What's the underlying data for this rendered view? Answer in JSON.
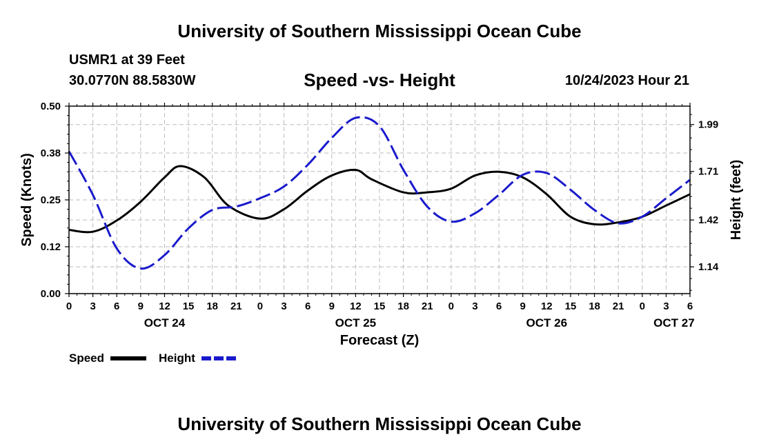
{
  "page": {
    "title": "University of Southern Mississippi Ocean Cube",
    "footer_title": "University of Southern Mississippi Ocean Cube",
    "station": "USMR1 at 39 Feet",
    "coordinates": "30.0770N  88.5830W",
    "subtitle": "Speed -vs- Height",
    "timestamp": "10/24/2023 Hour 21"
  },
  "chart_data": {
    "type": "line",
    "title": "Speed -vs- Height",
    "xlabel": "Forecast (Z)",
    "ylabel": "Speed (Knots)",
    "y2label": "Height (feet)",
    "x_unit": "hours since 10/24 00Z",
    "xlim": [
      0,
      78
    ],
    "ylim": [
      0.0,
      0.5
    ],
    "y2lim": [
      0.98,
      2.1
    ],
    "x_ticks": [
      0,
      3,
      6,
      9,
      12,
      15,
      18,
      21,
      24,
      27,
      30,
      33,
      36,
      39,
      42,
      45,
      48,
      51,
      54,
      57,
      60,
      63,
      66,
      69,
      72,
      75,
      78
    ],
    "x_tick_labels": [
      "0",
      "3",
      "6",
      "9",
      "12",
      "15",
      "18",
      "21",
      "0",
      "3",
      "6",
      "9",
      "12",
      "15",
      "18",
      "21",
      "0",
      "3",
      "6",
      "9",
      "12",
      "15",
      "18",
      "21",
      "0",
      "3",
      "6"
    ],
    "date_labels": [
      {
        "x": 12,
        "label": "OCT 24"
      },
      {
        "x": 36,
        "label": "OCT 25"
      },
      {
        "x": 60,
        "label": "OCT 26"
      },
      {
        "x": 76,
        "label": "OCT 27"
      }
    ],
    "y_ticks": [
      0.0,
      0.125,
      0.25,
      0.375,
      0.5
    ],
    "y_tick_labels": [
      "0.00",
      "0.12",
      "0.25",
      "0.38",
      "0.50"
    ],
    "y2_ticks": [
      1.14,
      1.42,
      1.71,
      1.99
    ],
    "y2_tick_labels": [
      "1.14",
      "1.42",
      "1.71",
      "1.99"
    ],
    "grid": true,
    "legend": "bottom-left",
    "series": [
      {
        "name": "Speed",
        "axis": "left",
        "color": "#000000",
        "dash": "solid",
        "x": [
          0,
          3,
          6,
          9,
          12,
          14,
          17,
          20,
          24,
          27,
          30,
          33,
          36,
          38,
          42,
          45,
          48,
          51,
          54,
          57,
          60,
          63,
          66,
          69,
          72,
          75,
          78
        ],
        "values": [
          0.17,
          0.165,
          0.195,
          0.245,
          0.31,
          0.34,
          0.31,
          0.235,
          0.2,
          0.225,
          0.275,
          0.315,
          0.33,
          0.305,
          0.27,
          0.27,
          0.28,
          0.315,
          0.325,
          0.31,
          0.265,
          0.205,
          0.185,
          0.19,
          0.205,
          0.235,
          0.265
        ]
      },
      {
        "name": "Height",
        "axis": "right",
        "color": "#1a1acc",
        "dash": "dashed",
        "x": [
          0,
          3,
          6,
          9,
          12,
          15,
          18,
          21,
          24,
          27,
          30,
          33,
          36,
          39,
          42,
          45,
          48,
          51,
          54,
          57,
          60,
          63,
          66,
          69,
          72,
          75,
          78
        ],
        "values": [
          1.83,
          1.57,
          1.25,
          1.13,
          1.21,
          1.37,
          1.48,
          1.5,
          1.55,
          1.62,
          1.75,
          1.91,
          2.03,
          1.98,
          1.72,
          1.5,
          1.41,
          1.46,
          1.57,
          1.69,
          1.7,
          1.6,
          1.48,
          1.4,
          1.44,
          1.55,
          1.66
        ]
      }
    ]
  }
}
